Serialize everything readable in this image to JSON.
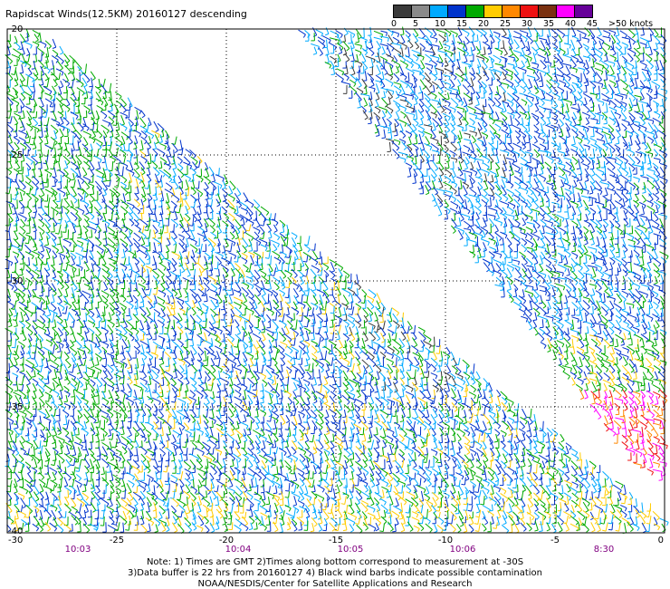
{
  "title": "Rapidscat Winds(12.5KM) 20160127 descending",
  "legend": {
    "labels": [
      "0",
      "5",
      "10",
      "15",
      "20",
      "25",
      "30",
      "35",
      "40",
      "45",
      ">50 knots"
    ],
    "colors": [
      "#3a3a3a",
      "#8a8a8a",
      "#00aaff",
      "#0033cc",
      "#00aa00",
      "#ffcc00",
      "#ff8800",
      "#ee1111",
      "#7a3010",
      "#ff00ff",
      "#660099"
    ]
  },
  "map": {
    "lon_range": [
      -30,
      0
    ],
    "lat_range": [
      -40,
      -20
    ],
    "lon_ticks": [
      "-30",
      "-25",
      "-20",
      "-15",
      "-10",
      "-5",
      "0"
    ],
    "lat_ticks": [
      "-20",
      "-25",
      "-30",
      "-35",
      "-40"
    ],
    "pass_times": [
      "10:03",
      "10:04",
      "10:05",
      "10:06",
      "8:30"
    ],
    "time_color": "#800080"
  },
  "notes": {
    "line1": "Note: 1) Times are GMT 2)Times along bottom correspond to measurement at -30S",
    "line2": "3)Data buffer is 22 hrs from 20160127 4) Black wind barbs indicate possible contamination",
    "line3": "NOAA/NESDIS/Center for Satellite Applications and Research"
  }
}
